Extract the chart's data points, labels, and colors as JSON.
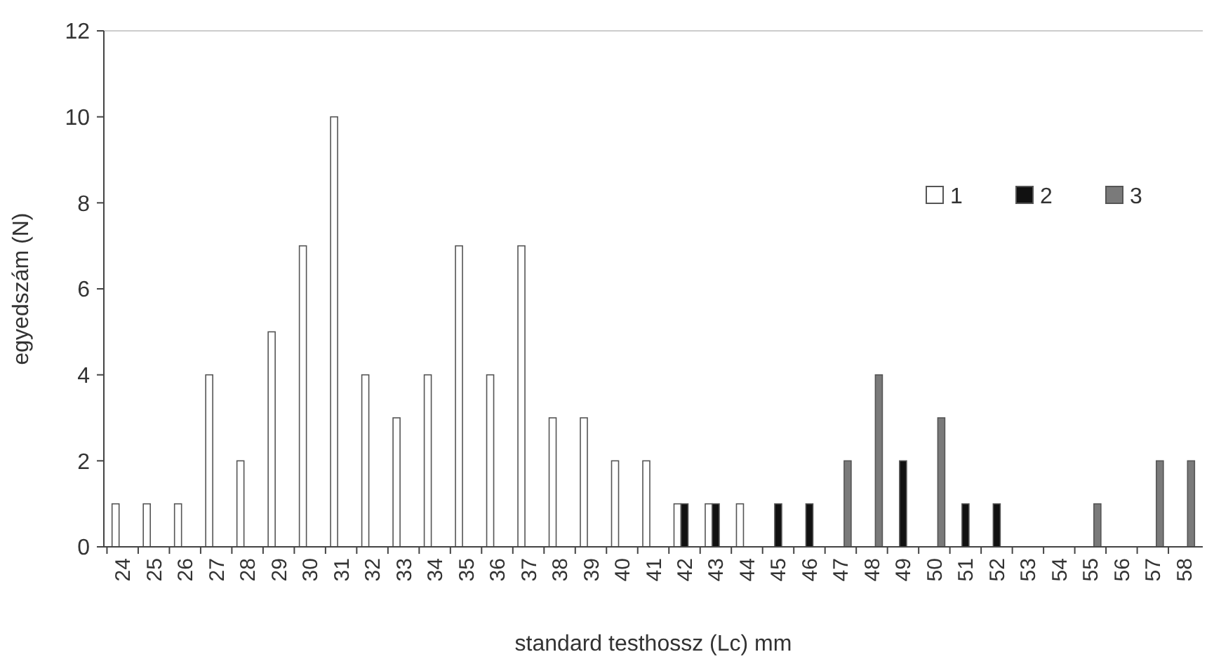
{
  "chart_data": {
    "type": "bar",
    "xlabel": "standard testhossz (Lc) mm",
    "ylabel": "egyedszám (N)",
    "categories": [
      "24",
      "25",
      "26",
      "27",
      "28",
      "29",
      "30",
      "31",
      "32",
      "33",
      "34",
      "35",
      "36",
      "37",
      "38",
      "39",
      "40",
      "41",
      "42",
      "43",
      "44",
      "45",
      "46",
      "47",
      "48",
      "49",
      "50",
      "51",
      "52",
      "53",
      "54",
      "55",
      "56",
      "57",
      "58"
    ],
    "series": [
      {
        "name": "1",
        "color": "#ffffff",
        "values": [
          1,
          1,
          1,
          4,
          2,
          5,
          7,
          10,
          4,
          3,
          4,
          7,
          4,
          7,
          3,
          3,
          2,
          2,
          1,
          1,
          1,
          null,
          null,
          null,
          null,
          null,
          null,
          null,
          null,
          null,
          null,
          null,
          null,
          null,
          null
        ]
      },
      {
        "name": "2",
        "color": "#111111",
        "values": [
          null,
          null,
          null,
          null,
          null,
          null,
          null,
          null,
          null,
          null,
          null,
          null,
          null,
          null,
          null,
          null,
          null,
          null,
          1,
          1,
          null,
          1,
          1,
          null,
          null,
          2,
          null,
          1,
          1,
          null,
          null,
          null,
          null,
          null,
          null
        ]
      },
      {
        "name": "3",
        "color": "#7a7a7a",
        "values": [
          null,
          null,
          null,
          null,
          null,
          null,
          null,
          null,
          null,
          null,
          null,
          null,
          null,
          null,
          null,
          null,
          null,
          null,
          null,
          null,
          null,
          null,
          null,
          2,
          4,
          null,
          3,
          null,
          null,
          null,
          null,
          1,
          null,
          2,
          2
        ]
      }
    ],
    "ylim": [
      0,
      12
    ],
    "yticks": [
      0,
      2,
      4,
      6,
      8,
      10,
      12
    ],
    "grid": false,
    "legend": "top right"
  }
}
